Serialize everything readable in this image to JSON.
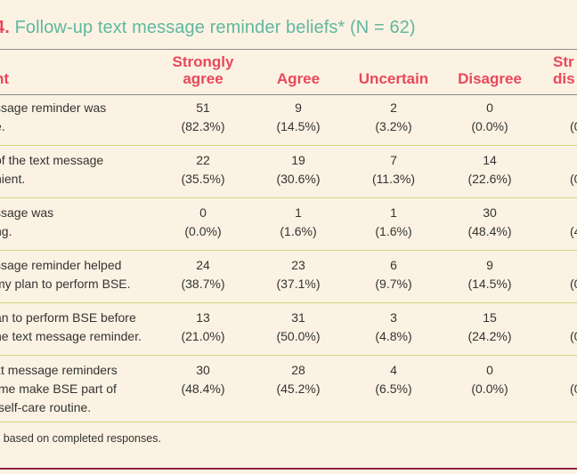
{
  "title": {
    "number": "4.",
    "text": "Follow-up text message reminder beliefs* (N = 62)"
  },
  "columns": {
    "statement": "nt",
    "strongly_agree": [
      "Strongly",
      "agree"
    ],
    "agree": "Agree",
    "uncertain": "Uncertain",
    "disagree": "Disagree",
    "strongly_disagree": [
      "Str",
      "dis"
    ]
  },
  "rows": [
    {
      "statement": [
        "ssage reminder was",
        "e."
      ],
      "strongly_agree": [
        "51",
        "(82.3%)"
      ],
      "agree": [
        "9",
        "(14.5%)"
      ],
      "uncertain": [
        "2",
        "(3.2%)"
      ],
      "disagree": [
        "0",
        "(0.0%)"
      ],
      "strongly_disagree": [
        "",
        "(0"
      ]
    },
    {
      "statement": [
        "of the text message",
        "nient."
      ],
      "strongly_agree": [
        "22",
        "(35.5%)"
      ],
      "agree": [
        "19",
        "(30.6%)"
      ],
      "uncertain": [
        "7",
        "(11.3%)"
      ],
      "disagree": [
        "14",
        "(22.6%)"
      ],
      "strongly_disagree": [
        "",
        "(0"
      ]
    },
    {
      "statement": [
        "ssage was",
        "ng."
      ],
      "strongly_agree": [
        "0",
        "(0.0%)"
      ],
      "agree": [
        "1",
        "(1.6%)"
      ],
      "uncertain": [
        "1",
        "(1.6%)"
      ],
      "disagree": [
        "30",
        "(48.4%)"
      ],
      "strongly_disagree": [
        "",
        "(4"
      ]
    },
    {
      "statement": [
        "ssage reminder helped",
        "my plan to perform BSE."
      ],
      "strongly_agree": [
        "24",
        "(38.7%)"
      ],
      "agree": [
        "23",
        "(37.1%)"
      ],
      "uncertain": [
        "6",
        "(9.7%)"
      ],
      "disagree": [
        "9",
        "(14.5%)"
      ],
      "strongly_disagree": [
        "",
        "(0"
      ]
    },
    {
      "statement": [
        "an to perform BSE before",
        "he text message reminder."
      ],
      "strongly_agree": [
        "13",
        "(21.0%)"
      ],
      "agree": [
        "31",
        "(50.0%)"
      ],
      "uncertain": [
        "3",
        "(4.8%)"
      ],
      "disagree": [
        "15",
        "(24.2%)"
      ],
      "strongly_disagree": [
        "",
        "(0"
      ]
    },
    {
      "statement": [
        "xt message reminders",
        " me make BSE part of",
        " self-care routine."
      ],
      "strongly_agree": [
        "30",
        "(48.4%)"
      ],
      "agree": [
        "28",
        "(45.2%)"
      ],
      "uncertain": [
        "4",
        "(6.5%)"
      ],
      "disagree": [
        "0",
        "(0.0%)"
      ],
      "strongly_disagree": [
        "",
        "(0"
      ]
    }
  ],
  "footnote": "s based on completed responses.",
  "colors": {
    "background": "#fcf2e3",
    "title_teal": "#5fb8a0",
    "header_red": "#e8485c",
    "row_rule": "#cfd57a",
    "bottom_rule": "#8b1f3c"
  }
}
